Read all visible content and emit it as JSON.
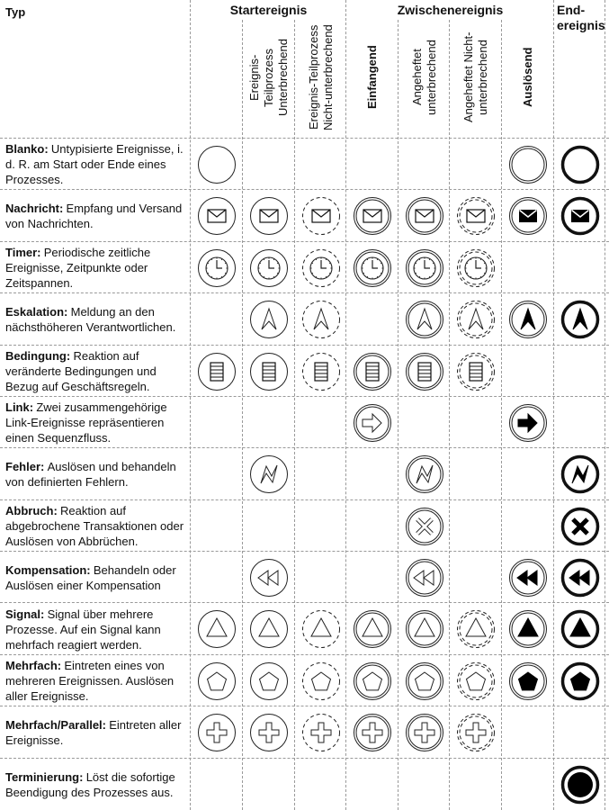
{
  "header": {
    "type_label": "Typ",
    "groups": [
      {
        "label": "Startereignis"
      },
      {
        "label": "Zwischenereignis"
      },
      {
        "label": "End-\nereignis"
      }
    ],
    "columns": [
      {
        "label": "",
        "bold": false
      },
      {
        "label": "Ereignis-\nTeilprozess\nUnterbrechend",
        "bold": false
      },
      {
        "label": "Ereignis-Teilprozess\nNicht-unterbrechend",
        "bold": false
      },
      {
        "label": "Einfangend",
        "bold": true
      },
      {
        "label": "Angeheftet\nunterbrechend",
        "bold": false
      },
      {
        "label": "Angeheftet Nicht-\nunterbrechend",
        "bold": false
      },
      {
        "label": "Auslösend",
        "bold": true
      },
      {
        "label": "",
        "bold": false
      }
    ]
  },
  "column_styles": [
    "single",
    "single",
    "dashed",
    "double",
    "double",
    "double-dashed",
    "double-filled",
    "thick-filled"
  ],
  "rows": [
    {
      "name": "Blanko:",
      "desc": "Untypisierte Ereignisse, i. d. R. am Start oder Ende eines Prozesses.",
      "icon": "none",
      "cells": [
        1,
        0,
        0,
        0,
        0,
        0,
        1,
        1
      ]
    },
    {
      "name": "Nachricht:",
      "desc": "Empfang und Versand von Nachrichten.",
      "icon": "envelope",
      "cells": [
        1,
        1,
        1,
        1,
        1,
        1,
        1,
        1
      ]
    },
    {
      "name": "Timer:",
      "desc": "Periodische zeitliche Ereignisse, Zeitpunkte oder Zeitspannen.",
      "icon": "clock",
      "cells": [
        1,
        1,
        1,
        1,
        1,
        1,
        0,
        0
      ]
    },
    {
      "name": "Eskalation:",
      "desc": "Meldung an den nächsthöheren Verantwortlichen.",
      "icon": "escalation-arrow",
      "cells": [
        0,
        1,
        1,
        0,
        1,
        1,
        1,
        1
      ]
    },
    {
      "name": "Bedingung:",
      "desc": "Reaktion auf veränderte Bedingungen und Bezug auf Geschäftsregeln.",
      "icon": "condition-list",
      "cells": [
        1,
        1,
        1,
        1,
        1,
        1,
        0,
        0
      ]
    },
    {
      "name": "Link:",
      "desc": "Zwei zusammengehörige Link-Ereignisse repräsentieren einen Sequenzfluss.",
      "icon": "link-arrow",
      "cells": [
        0,
        0,
        0,
        1,
        0,
        0,
        1,
        0
      ]
    },
    {
      "name": "Fehler:",
      "desc": "Auslösen und behandeln von definierten Fehlern.",
      "icon": "error-lightning",
      "cells": [
        0,
        1,
        0,
        0,
        1,
        0,
        0,
        1
      ]
    },
    {
      "name": "Abbruch:",
      "desc": "Reaktion auf abgebrochene Transaktionen oder Auslösen von Abbrüchen.",
      "icon": "cancel-x",
      "cells": [
        0,
        0,
        0,
        0,
        1,
        0,
        0,
        1
      ]
    },
    {
      "name": "Kompensation:",
      "desc": "Behandeln oder Auslösen einer Kompensation",
      "icon": "compensation-rewind",
      "cells": [
        0,
        1,
        0,
        0,
        1,
        0,
        1,
        1
      ]
    },
    {
      "name": "Signal:",
      "desc": "Signal über mehrere Prozesse. Auf ein Signal kann mehrfach reagiert werden.",
      "icon": "signal-triangle",
      "cells": [
        1,
        1,
        1,
        1,
        1,
        1,
        1,
        1
      ]
    },
    {
      "name": "Mehrfach:",
      "desc": "Eintreten eines von mehreren Ereignissen. Auslösen aller Ereignisse.",
      "icon": "multiple-pentagon",
      "cells": [
        1,
        1,
        1,
        1,
        1,
        1,
        1,
        1
      ]
    },
    {
      "name": "Mehrfach/Parallel:",
      "desc": "Eintreten aller Ereignisse.",
      "icon": "parallel-plus",
      "cells": [
        1,
        1,
        1,
        1,
        1,
        1,
        0,
        0
      ]
    },
    {
      "name": "Terminierung:",
      "desc": "Löst die sofortige Beendigung des Prozesses aus.",
      "icon": "terminate-dot",
      "cells": [
        0,
        0,
        0,
        0,
        0,
        0,
        0,
        1
      ]
    }
  ]
}
